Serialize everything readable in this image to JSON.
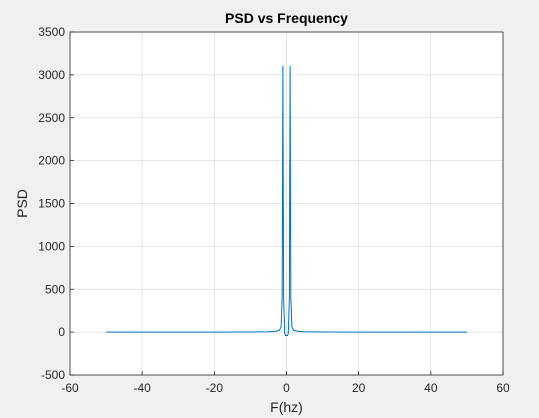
{
  "chart_data": {
    "type": "line",
    "title": "PSD vs Frequency",
    "xlabel": "F(hz)",
    "ylabel": "PSD",
    "xlim": [
      -60,
      60
    ],
    "ylim": [
      -500,
      3500
    ],
    "xticks": [
      -60,
      -40,
      -20,
      0,
      20,
      40,
      60
    ],
    "yticks": [
      -500,
      0,
      500,
      1000,
      1500,
      2000,
      2500,
      3000,
      3500
    ],
    "grid": true,
    "legend": "none",
    "series": [
      {
        "color": "#0072bd",
        "x": [
          -50,
          -40,
          -30,
          -20,
          -10,
          -5,
          -3,
          -2,
          -1.5,
          -1.2,
          -1.0,
          -0.8,
          -0.5,
          -0.3,
          0,
          0.3,
          0.5,
          0.8,
          1.0,
          1.2,
          1.5,
          2,
          3,
          5,
          10,
          20,
          30,
          40,
          50
        ],
        "y": [
          0,
          0,
          0,
          0,
          2,
          5,
          10,
          20,
          60,
          400,
          3100,
          400,
          -10,
          -40,
          -40,
          -40,
          -10,
          400,
          3100,
          400,
          60,
          20,
          10,
          5,
          2,
          0,
          0,
          0,
          0
        ]
      }
    ]
  },
  "colors": {
    "figure_background": "#f0f0f0",
    "axes_background": "#ffffff",
    "grid": "#dfdfdf",
    "axis": "#262626",
    "line": "#0072bd"
  }
}
